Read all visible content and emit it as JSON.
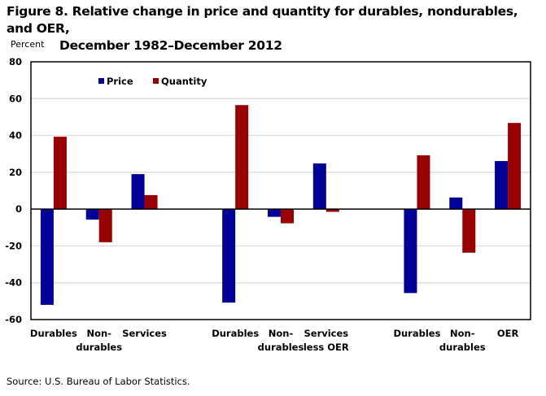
{
  "chart_data": {
    "type": "bar",
    "title_line1": "Figure 8. Relative change in price and quantity for durables, nondurables, and OER,",
    "title_line2": "December 1982–December 2012",
    "ylabel": "Percent",
    "xlabel": "",
    "ylim": [
      -60,
      80
    ],
    "yticks": [
      "80",
      "60",
      "40",
      "20",
      "0",
      "-20",
      "-40",
      "-60"
    ],
    "ytick_values": [
      80,
      60,
      40,
      20,
      0,
      -20,
      -40,
      -60
    ],
    "grid": true,
    "legend_position": "top-left",
    "categories": [
      {
        "line1": "Durables",
        "line2": "",
        "slot": 0
      },
      {
        "line1": "Non-",
        "line2": "durables",
        "slot": 1
      },
      {
        "line1": "Services",
        "line2": "",
        "slot": 2
      },
      {
        "line1": "Durables",
        "line2": "",
        "slot": 4
      },
      {
        "line1": "Non-",
        "line2": "durables",
        "slot": 5
      },
      {
        "line1": "Services",
        "line2": "less OER",
        "slot": 6
      },
      {
        "line1": "Durables",
        "line2": "",
        "slot": 8
      },
      {
        "line1": "Non-",
        "line2": "durables",
        "slot": 9
      },
      {
        "line1": "OER",
        "line2": "",
        "slot": 10
      }
    ],
    "total_slots": 11,
    "series": [
      {
        "name": "Price",
        "color": "#000099",
        "values": [
          -52,
          -5.7,
          19,
          -50.8,
          -4.2,
          24.8,
          -45.6,
          6.3,
          26.1
        ]
      },
      {
        "name": "Quantity",
        "color": "#990000",
        "values": [
          39.3,
          -18,
          7.6,
          56.5,
          -7.7,
          -1.5,
          29.2,
          -23.7,
          46.8
        ]
      }
    ]
  },
  "source": "Source: U.S. Bureau  of Labor Statistics."
}
